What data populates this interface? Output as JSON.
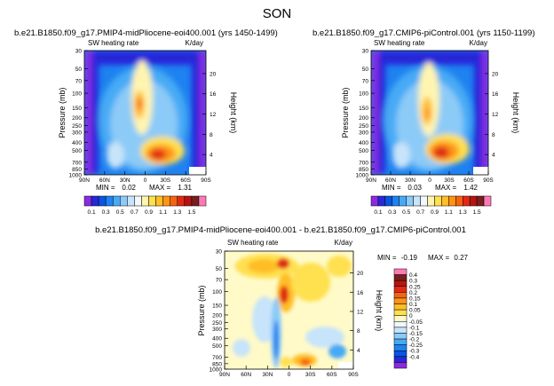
{
  "figure_title": "SON",
  "chart_data": [
    {
      "type": "heatmap",
      "id": "pliocene",
      "title": "b.e21.B1850.f09_g17.PMIP4-midPliocene-eoi400.001 (yrs 1450-1499)",
      "left_label": "SW heating rate",
      "right_label": "K/day",
      "xlabel": "",
      "ylabel": "Pressure (mb)",
      "ylabel_right": "Height (km)",
      "x_ticks": [
        "90N",
        "60N",
        "30N",
        "0",
        "30S",
        "60S",
        "90S"
      ],
      "y_ticks": [
        "30",
        "50",
        "70",
        "100",
        "150",
        "200",
        "250",
        "300",
        "400",
        "500",
        "700",
        "850",
        "1000"
      ],
      "y_ticks_shown": [
        "30",
        "50",
        "70",
        "100",
        "150",
        "200",
        "250",
        "300",
        "400",
        "500",
        "700",
        "850",
        "1000"
      ],
      "height_ticks": [
        "20",
        "16",
        "12",
        "8",
        "4"
      ],
      "min_label": "MIN =",
      "min_value": "0.02",
      "max_label": "MAX =",
      "max_value": "1.31",
      "min": 0.02,
      "max": 1.31
    },
    {
      "type": "heatmap",
      "id": "control",
      "title": "b.e21.B1850.f09_g17.CMIP6-piControl.001 (yrs 1150-1199)",
      "left_label": "SW heating rate",
      "right_label": "K/day",
      "xlabel": "",
      "ylabel": "Pressure (mb)",
      "ylabel_right": "Height (km)",
      "x_ticks": [
        "90N",
        "60N",
        "30N",
        "0",
        "30S",
        "60S",
        "90S"
      ],
      "y_ticks": [
        "30",
        "50",
        "70",
        "100",
        "150",
        "200",
        "250",
        "300",
        "400",
        "500",
        "700",
        "850",
        "1000"
      ],
      "y_ticks_shown": [
        "30",
        "50",
        "70",
        "100",
        "150",
        "200",
        "250",
        "300",
        "400",
        "500",
        "700",
        "850",
        "1000"
      ],
      "height_ticks": [
        "20",
        "16",
        "12",
        "8",
        "4"
      ],
      "min_label": "MIN =",
      "min_value": "0.03",
      "max_label": "MAX =",
      "max_value": "1.42",
      "min": 0.03,
      "max": 1.42
    },
    {
      "type": "heatmap",
      "id": "difference",
      "title": "b.e21.B1850.f09_g17.PMIP4-midPliocene-eoi400.001 - b.e21.B1850.f09_g17.CMIP6-piControl.001",
      "left_label": "SW heating rate",
      "right_label": "K/day",
      "xlabel": "",
      "ylabel": "Pressure (mb)",
      "ylabel_right": "Height (km)",
      "x_ticks": [
        "90N",
        "60N",
        "30N",
        "0",
        "30S",
        "60S",
        "90S"
      ],
      "y_ticks": [
        "30",
        "50",
        "70",
        "100",
        "150",
        "200",
        "250",
        "300",
        "400",
        "500",
        "700",
        "850",
        "1000"
      ],
      "y_ticks_shown": [
        "30",
        "50",
        "70",
        "100",
        "150",
        "200",
        "250",
        "300",
        "400",
        "500",
        "700",
        "850",
        "1000"
      ],
      "height_ticks": [
        "20",
        "16",
        "12",
        "8",
        "4"
      ],
      "min_label": "MIN =",
      "min_value": "-0.19",
      "max_label": "MAX =",
      "max_value": "0.27",
      "min": -0.19,
      "max": 0.27
    }
  ],
  "colorbar_abs": {
    "labels": [
      "0.1",
      "0.3",
      "0.5",
      "0.7",
      "0.9",
      "1.1",
      "1.3",
      "1.5"
    ],
    "colors": [
      "#8a2be2",
      "#2828d8",
      "#0a55e0",
      "#1e82f0",
      "#46aaf5",
      "#8ccaf8",
      "#c8e4fa",
      "#f2f8fc",
      "#fff5b0",
      "#ffe050",
      "#ffbe28",
      "#ff9414",
      "#f56414",
      "#e02a14",
      "#b41414",
      "#781e1e",
      "#ff7ab4"
    ]
  },
  "colorbar_diff": {
    "labels": [
      "0.4",
      "0.3",
      "0.25",
      "0.2",
      "0.15",
      "0.1",
      "0.05",
      "0",
      "-0.05",
      "-0.1",
      "-0.15",
      "-0.2",
      "-0.25",
      "-0.3",
      "-0.4"
    ],
    "colors": [
      "#ff7ab4",
      "#781e1e",
      "#b41414",
      "#e02a14",
      "#f56414",
      "#ff9414",
      "#ffbe28",
      "#ffe050",
      "#fffac8",
      "#f0f8ff",
      "#c8e4fa",
      "#8ccaf8",
      "#46aaf5",
      "#1e82f0",
      "#0a55e0",
      "#2828d8",
      "#8a2be2"
    ]
  }
}
